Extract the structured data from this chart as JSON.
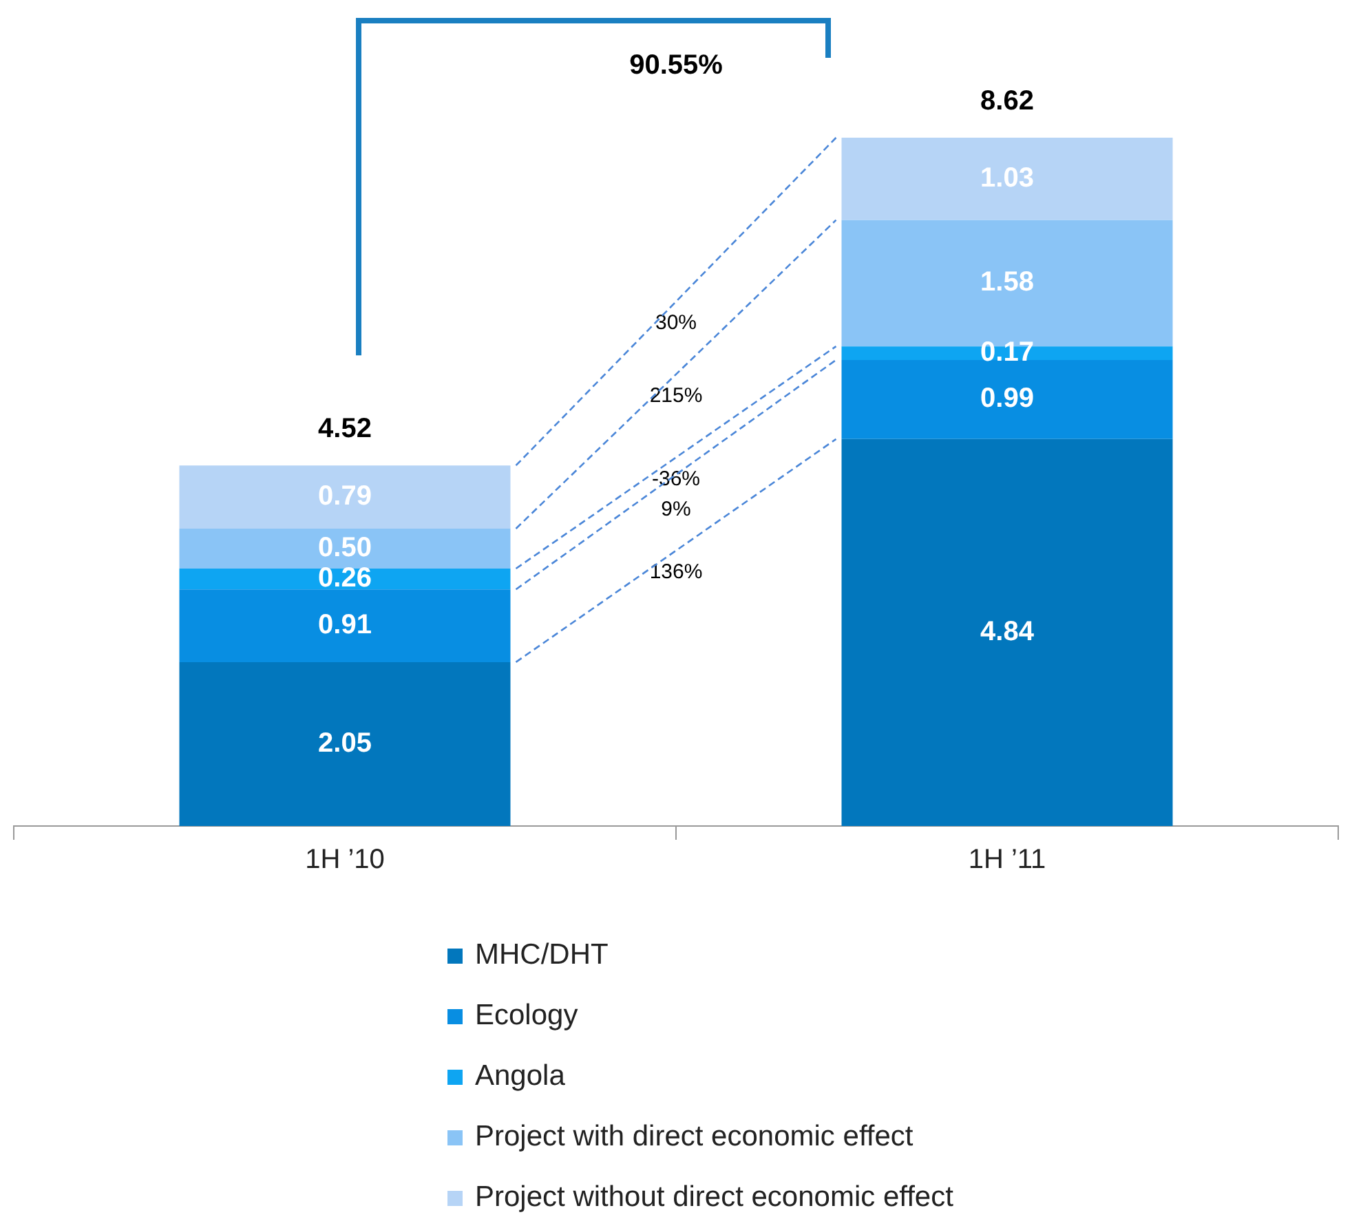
{
  "chart_data": {
    "type": "bar",
    "stacked": true,
    "categories": [
      "1H ’10",
      "1H ’11"
    ],
    "series": [
      {
        "name": "MHC/DHT",
        "color": "#0277bd",
        "values": [
          2.05,
          4.84
        ],
        "value_labels": [
          "2.05",
          "4.84"
        ]
      },
      {
        "name": "Ecology",
        "color": "#088ee2",
        "values": [
          0.91,
          0.99
        ],
        "value_labels": [
          "0.91",
          "0.99"
        ]
      },
      {
        "name": "Angola",
        "color": "#0ea5f2",
        "values": [
          0.26,
          0.17
        ],
        "value_labels": [
          "0.26",
          "0.17"
        ]
      },
      {
        "name": "Project with direct economic effect",
        "color": "#8ac4f6",
        "values": [
          0.5,
          1.58
        ],
        "value_labels": [
          "0.50",
          "1.58"
        ]
      },
      {
        "name": "Project without direct economic effect",
        "color": "#b6d4f6",
        "values": [
          0.79,
          1.03
        ],
        "value_labels": [
          "0.79",
          "1.03"
        ]
      }
    ],
    "totals": [
      "4.52",
      "8.62"
    ],
    "annotations": [
      "90.55%",
      "136%",
      "9%",
      "-36%",
      "215%",
      "30%"
    ],
    "legend": "bottom",
    "grid": false
  }
}
